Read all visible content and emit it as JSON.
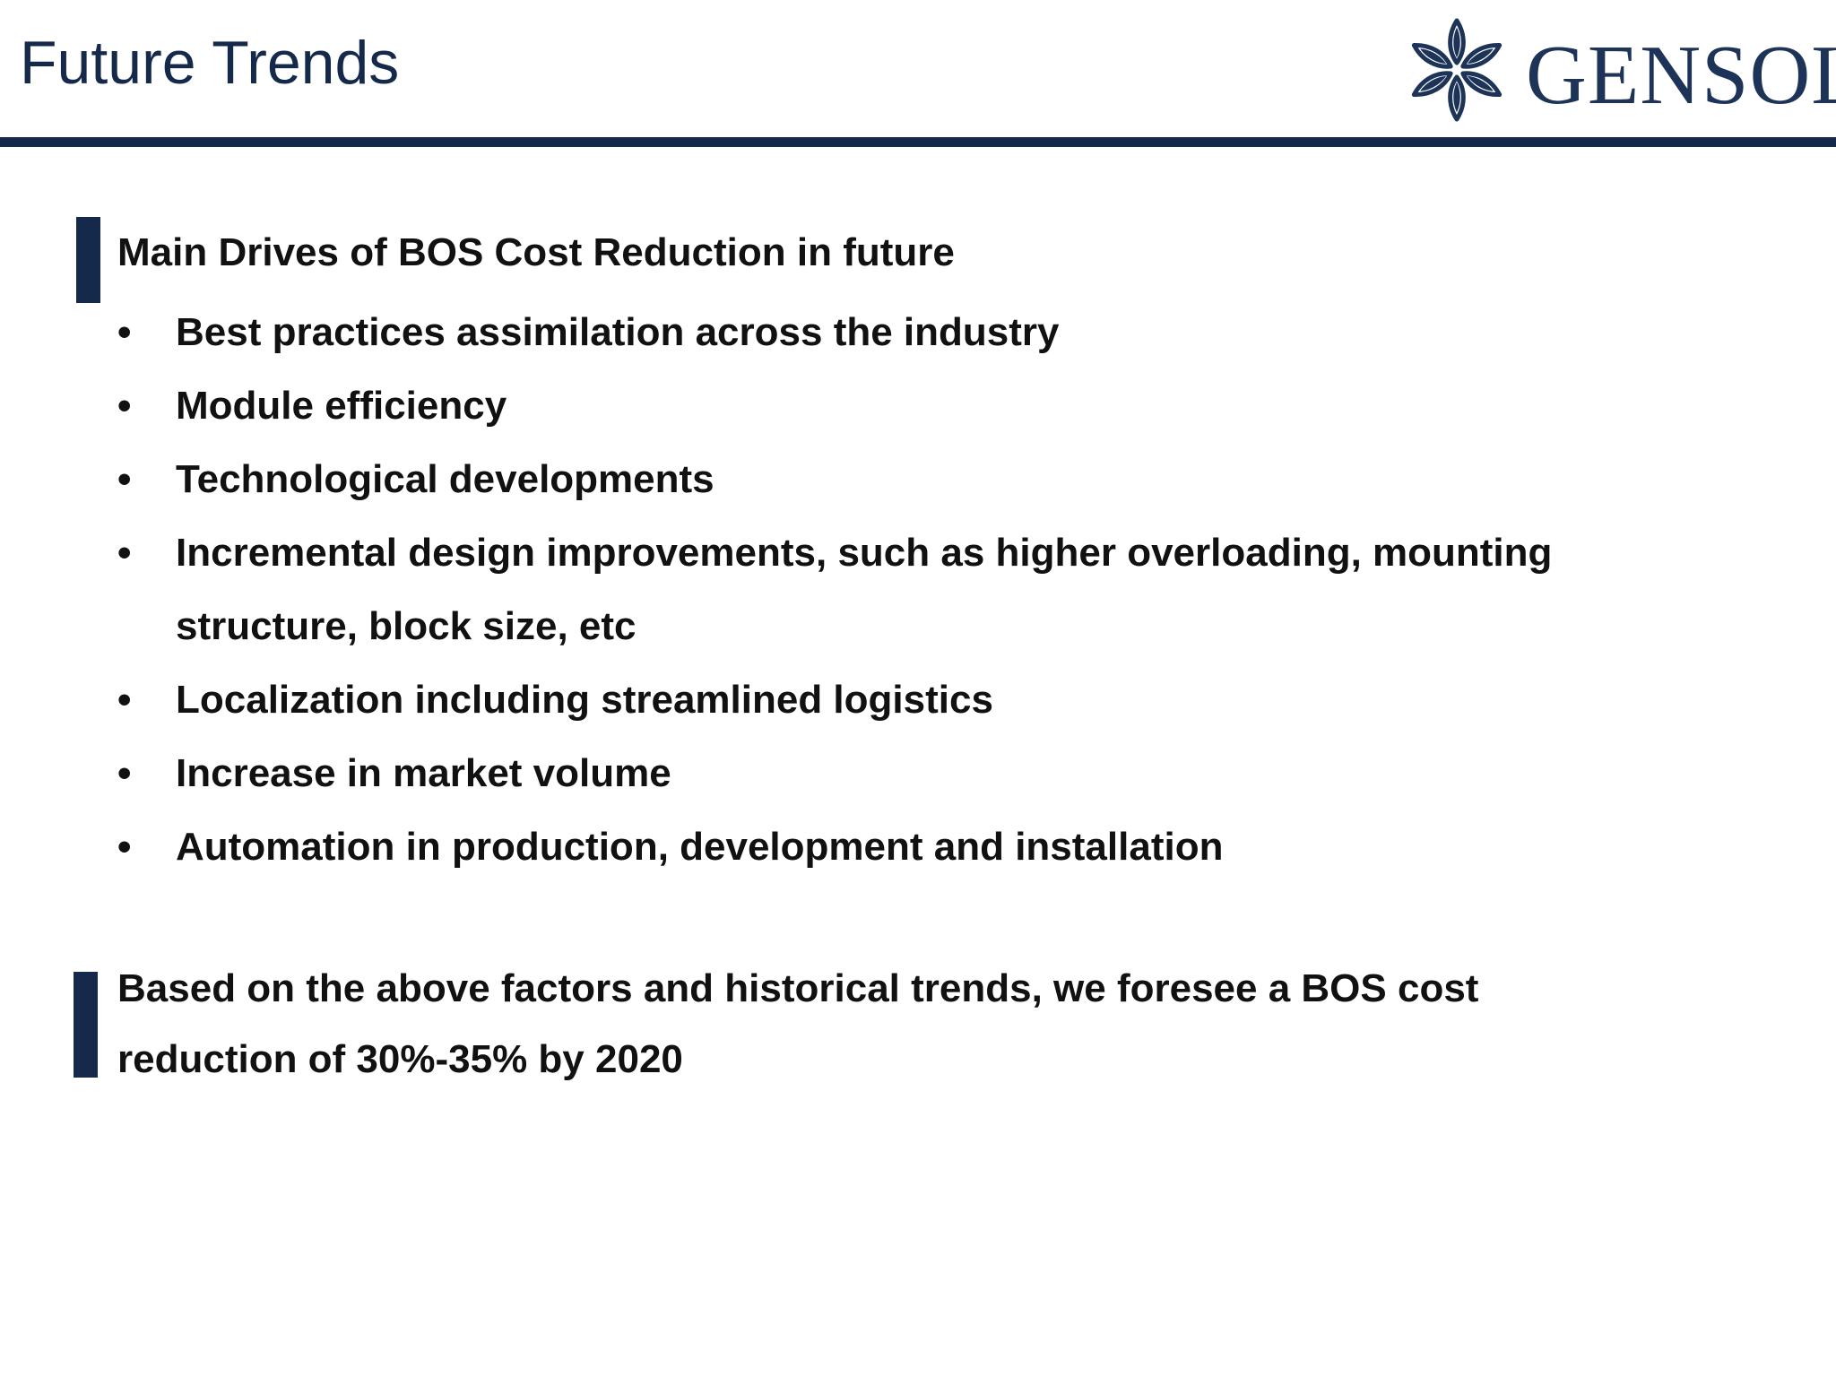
{
  "slide": {
    "title": "Future Trends"
  },
  "logo": {
    "text": "GENSOL",
    "color": "#1d3458"
  },
  "colors": {
    "accent": "#15294a",
    "text": "#111111"
  },
  "content": {
    "heading": "Main Drives of BOS Cost Reduction in future",
    "bullet_symbol": "•",
    "bullets": [
      "Best practices assimilation across the industry",
      "Module efficiency",
      "Technological developments",
      "Incremental design improvements, such as higher overloading, mounting structure, block size, etc",
      "Localization including streamlined logistics",
      "Increase in market volume",
      "Automation in production, development and installation"
    ],
    "conclusion": "Based on the above factors and historical trends, we foresee a BOS cost reduction of 30%-35% by 2020"
  }
}
